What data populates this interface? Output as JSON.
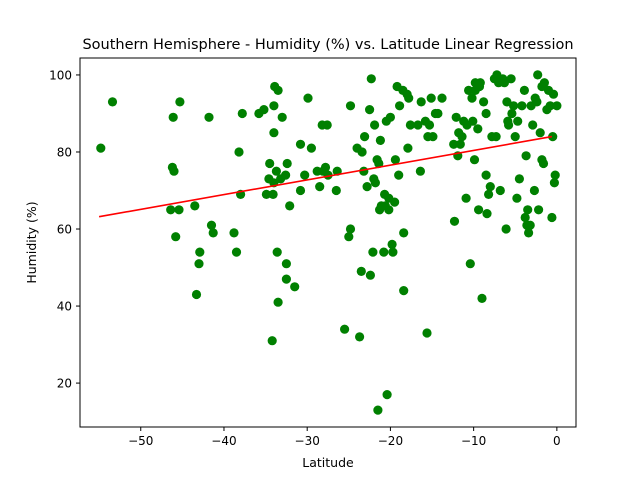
{
  "chart_data": {
    "type": "scatter",
    "title": "Southern Hemisphere - Humidity (%) vs. Latitude Linear Regression",
    "xlabel": "Latitude",
    "ylabel": "Humidity (%)",
    "xlim": [
      -57.3,
      2.3
    ],
    "ylim": [
      8.6,
      104.4
    ],
    "xticks": [
      -50,
      -40,
      -30,
      -20,
      -10,
      0
    ],
    "yticks": [
      20,
      40,
      60,
      80,
      100
    ],
    "grid": false,
    "colors": {
      "points": "#008000",
      "regression": "#ff0000"
    },
    "regression": {
      "x": [
        -55,
        -0.6
      ],
      "y": [
        63.2,
        84
      ]
    },
    "points": [
      [
        -54.8,
        81
      ],
      [
        -53.4,
        93
      ],
      [
        -46.4,
        65
      ],
      [
        -46.2,
        76
      ],
      [
        -46.1,
        89
      ],
      [
        -46.0,
        75
      ],
      [
        -45.8,
        58
      ],
      [
        -45.4,
        65
      ],
      [
        -45.3,
        93
      ],
      [
        -43.5,
        66
      ],
      [
        -43.3,
        43
      ],
      [
        -43.0,
        51
      ],
      [
        -42.9,
        54
      ],
      [
        -41.8,
        89
      ],
      [
        -41.5,
        61
      ],
      [
        -41.3,
        59
      ],
      [
        -38.8,
        59
      ],
      [
        -38.5,
        54
      ],
      [
        -38.2,
        80
      ],
      [
        -38.0,
        69
      ],
      [
        -37.8,
        90
      ],
      [
        -35.8,
        90
      ],
      [
        -35.2,
        91
      ],
      [
        -34.9,
        69
      ],
      [
        -34.6,
        73
      ],
      [
        -34.5,
        77
      ],
      [
        -34.2,
        31
      ],
      [
        -34.1,
        69
      ],
      [
        -34.0,
        72
      ],
      [
        -34.0,
        92
      ],
      [
        -34.0,
        85
      ],
      [
        -33.9,
        97
      ],
      [
        -33.7,
        75
      ],
      [
        -33.6,
        54
      ],
      [
        -33.5,
        96
      ],
      [
        -33.5,
        41
      ],
      [
        -33.2,
        73
      ],
      [
        -33.0,
        89
      ],
      [
        -32.6,
        74
      ],
      [
        -32.5,
        51
      ],
      [
        -32.5,
        47
      ],
      [
        -32.4,
        77
      ],
      [
        -32.1,
        66
      ],
      [
        -31.5,
        45
      ],
      [
        -30.8,
        70
      ],
      [
        -30.8,
        82
      ],
      [
        -30.3,
        74
      ],
      [
        -29.9,
        94
      ],
      [
        -29.5,
        81
      ],
      [
        -28.8,
        75
      ],
      [
        -28.5,
        71
      ],
      [
        -28.2,
        87
      ],
      [
        -28.1,
        75
      ],
      [
        -27.8,
        76
      ],
      [
        -27.6,
        87
      ],
      [
        -27.5,
        74
      ],
      [
        -26.5,
        70
      ],
      [
        -26.4,
        75
      ],
      [
        -25.5,
        34
      ],
      [
        -25.0,
        58
      ],
      [
        -24.8,
        60
      ],
      [
        -24.8,
        92
      ],
      [
        -24.0,
        81
      ],
      [
        -23.7,
        32
      ],
      [
        -23.5,
        49
      ],
      [
        -23.4,
        80
      ],
      [
        -23.2,
        75
      ],
      [
        -23.1,
        84
      ],
      [
        -22.8,
        71
      ],
      [
        -22.5,
        91
      ],
      [
        -22.4,
        48
      ],
      [
        -22.3,
        99
      ],
      [
        -22.1,
        54
      ],
      [
        -22.0,
        73
      ],
      [
        -21.9,
        87
      ],
      [
        -21.8,
        72
      ],
      [
        -21.6,
        78
      ],
      [
        -21.5,
        13
      ],
      [
        -21.4,
        77
      ],
      [
        -21.3,
        65
      ],
      [
        -21.2,
        83
      ],
      [
        -21.1,
        66
      ],
      [
        -20.8,
        54
      ],
      [
        -20.7,
        69
      ],
      [
        -20.6,
        66
      ],
      [
        -20.5,
        88
      ],
      [
        -20.4,
        17
      ],
      [
        -20.2,
        65
      ],
      [
        -20.2,
        68
      ],
      [
        -20.0,
        89
      ],
      [
        -19.8,
        56
      ],
      [
        -19.7,
        54
      ],
      [
        -19.5,
        67
      ],
      [
        -19.4,
        78
      ],
      [
        -19.2,
        97
      ],
      [
        -19.0,
        74
      ],
      [
        -18.9,
        92
      ],
      [
        -18.5,
        96
      ],
      [
        -18.4,
        59
      ],
      [
        -18.4,
        44
      ],
      [
        -18.0,
        95
      ],
      [
        -17.9,
        81
      ],
      [
        -17.8,
        94
      ],
      [
        -17.6,
        87
      ],
      [
        -16.7,
        87
      ],
      [
        -16.4,
        75
      ],
      [
        -16.3,
        93
      ],
      [
        -15.8,
        88
      ],
      [
        -15.6,
        33
      ],
      [
        -15.5,
        84
      ],
      [
        -15.3,
        87
      ],
      [
        -15.1,
        94
      ],
      [
        -14.9,
        84
      ],
      [
        -14.6,
        90
      ],
      [
        -14.3,
        90
      ],
      [
        -13.8,
        94
      ],
      [
        -12.4,
        82
      ],
      [
        -12.3,
        62
      ],
      [
        -12.1,
        89
      ],
      [
        -11.9,
        79
      ],
      [
        -11.8,
        85
      ],
      [
        -11.6,
        82
      ],
      [
        -11.4,
        84
      ],
      [
        -11.2,
        88
      ],
      [
        -10.9,
        68
      ],
      [
        -10.8,
        87
      ],
      [
        -10.6,
        96
      ],
      [
        -10.4,
        51
      ],
      [
        -10.2,
        94
      ],
      [
        -10.1,
        88
      ],
      [
        -9.9,
        78
      ],
      [
        -9.8,
        96
      ],
      [
        -9.8,
        98
      ],
      [
        -9.5,
        86
      ],
      [
        -9.4,
        65
      ],
      [
        -9.3,
        97
      ],
      [
        -9.2,
        98
      ],
      [
        -9.0,
        42
      ],
      [
        -8.8,
        93
      ],
      [
        -8.5,
        90
      ],
      [
        -8.5,
        74
      ],
      [
        -8.4,
        64
      ],
      [
        -8.2,
        69
      ],
      [
        -8.0,
        71
      ],
      [
        -7.8,
        84
      ],
      [
        -7.5,
        99
      ],
      [
        -7.3,
        84
      ],
      [
        -7.2,
        100
      ],
      [
        -7.0,
        98
      ],
      [
        -6.8,
        70
      ],
      [
        -6.5,
        99
      ],
      [
        -6.3,
        98
      ],
      [
        -6.1,
        60
      ],
      [
        -6.0,
        93
      ],
      [
        -5.9,
        88
      ],
      [
        -5.8,
        87
      ],
      [
        -5.5,
        99
      ],
      [
        -5.4,
        90
      ],
      [
        -5.2,
        92
      ],
      [
        -5.0,
        84
      ],
      [
        -4.8,
        68
      ],
      [
        -4.7,
        88
      ],
      [
        -4.5,
        73
      ],
      [
        -4.2,
        92
      ],
      [
        -3.9,
        96
      ],
      [
        -3.8,
        63
      ],
      [
        -3.7,
        79
      ],
      [
        -3.6,
        61
      ],
      [
        -3.5,
        65
      ],
      [
        -3.4,
        59
      ],
      [
        -3.2,
        61
      ],
      [
        -3.1,
        92
      ],
      [
        -2.9,
        87
      ],
      [
        -2.7,
        70
      ],
      [
        -2.6,
        94
      ],
      [
        -2.4,
        93
      ],
      [
        -2.3,
        100
      ],
      [
        -2.2,
        65
      ],
      [
        -2.0,
        85
      ],
      [
        -1.8,
        78
      ],
      [
        -1.8,
        97
      ],
      [
        -1.6,
        77
      ],
      [
        -1.5,
        98
      ],
      [
        -1.2,
        91
      ],
      [
        -1.0,
        96
      ],
      [
        -0.8,
        92
      ],
      [
        -0.6,
        63
      ],
      [
        -0.5,
        84
      ],
      [
        -0.4,
        95
      ],
      [
        -0.3,
        72
      ],
      [
        -0.2,
        74
      ],
      [
        0.0,
        92
      ]
    ]
  }
}
